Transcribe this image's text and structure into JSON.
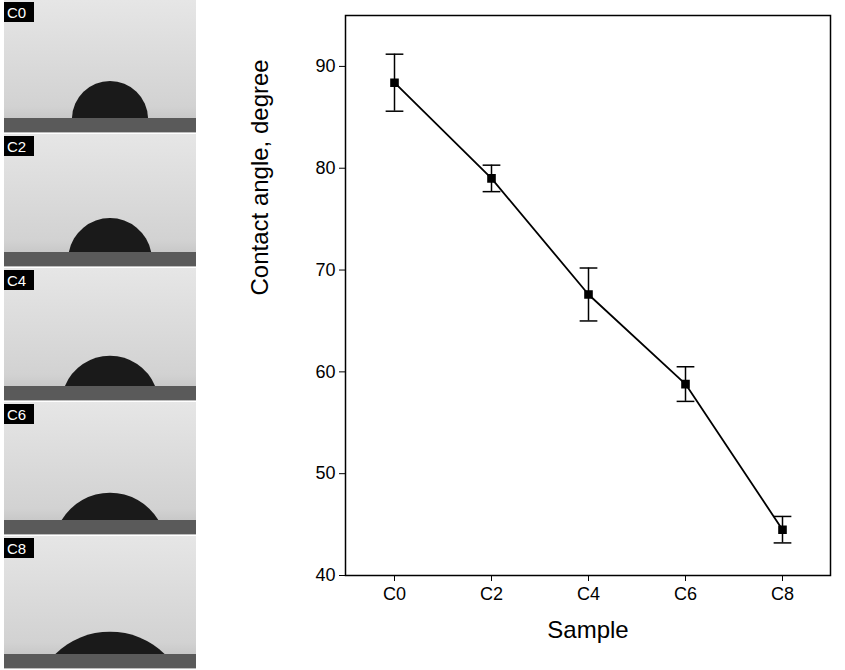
{
  "chart_data": {
    "type": "line",
    "x_label": "Sample",
    "y_label": "Contact angle, degree",
    "categories": [
      "C0",
      "C2",
      "C4",
      "C6",
      "C8"
    ],
    "values": [
      88.4,
      79.0,
      67.6,
      58.8,
      44.5
    ],
    "errors": [
      2.8,
      1.3,
      2.6,
      1.7,
      1.3
    ],
    "color": "#000000",
    "marker": "square",
    "ylim": [
      40,
      95
    ],
    "yticks": [
      40,
      50,
      60,
      70,
      80,
      90
    ],
    "grid": false
  }
}
